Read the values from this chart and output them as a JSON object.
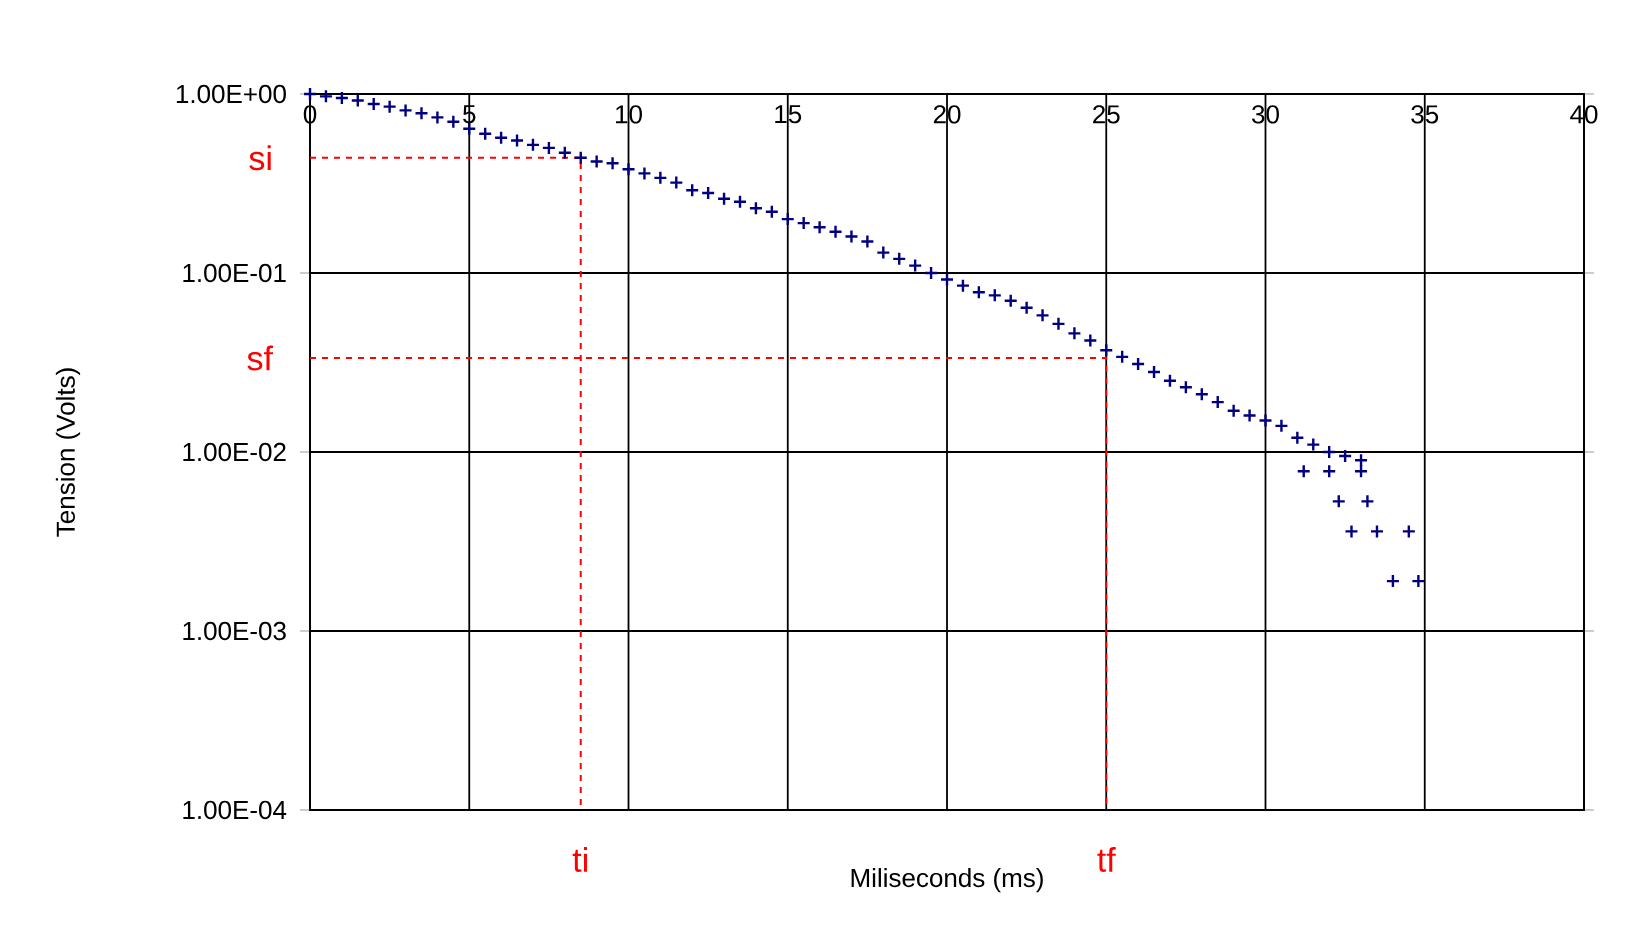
{
  "chart_data": {
    "type": "scatter",
    "xlabel": "Miliseconds (ms)",
    "ylabel": "Tension (Volts)",
    "log": "y",
    "grid": true,
    "xlim": [
      0,
      40
    ],
    "xticks": [
      0,
      5,
      10,
      15,
      20,
      25,
      30,
      35,
      40
    ],
    "ylim": [
      0.0001,
      1
    ],
    "yticks": [
      {
        "value": 1,
        "label": "1.00E+00"
      },
      {
        "value": 0.1,
        "label": "1.00E-01"
      },
      {
        "value": 0.01,
        "label": "1.00E-02"
      },
      {
        "value": 0.001,
        "label": "1.00E-03"
      },
      {
        "value": 0.0001,
        "label": "1.00E-04"
      }
    ],
    "series": [
      {
        "color": "#000080",
        "marker": "cross",
        "x": [
          0,
          0.5,
          1,
          1.5,
          2,
          2.5,
          3,
          3.5,
          4,
          4.5,
          5,
          5.5,
          6,
          6.5,
          7,
          7.5,
          8,
          8.5,
          9,
          9.5,
          10,
          10.5,
          11,
          11.5,
          12,
          12.5,
          13,
          13.5,
          14,
          14.5,
          15,
          15.5,
          16,
          16.5,
          17,
          17.5,
          18,
          18.5,
          19,
          19.5,
          20,
          20.5,
          21,
          21.5,
          22,
          22.5,
          23,
          23.5,
          24,
          24.5,
          25,
          25.5,
          26,
          26.5,
          27,
          27.5,
          28,
          28.5,
          29,
          29.5,
          30,
          30.5,
          31,
          31.5,
          32,
          32.5,
          33,
          31.2,
          32,
          33,
          32.3,
          33.2,
          32.7,
          33.5,
          34.5,
          34,
          34.8
        ],
        "values": [
          1.0,
          0.97,
          0.95,
          0.92,
          0.88,
          0.85,
          0.81,
          0.78,
          0.74,
          0.7,
          0.64,
          0.6,
          0.57,
          0.55,
          0.52,
          0.5,
          0.47,
          0.44,
          0.42,
          0.41,
          0.38,
          0.36,
          0.34,
          0.32,
          0.29,
          0.28,
          0.26,
          0.25,
          0.23,
          0.22,
          0.2,
          0.19,
          0.18,
          0.17,
          0.16,
          0.15,
          0.13,
          0.12,
          0.11,
          0.1,
          0.092,
          0.085,
          0.078,
          0.075,
          0.07,
          0.064,
          0.058,
          0.052,
          0.046,
          0.042,
          0.037,
          0.034,
          0.031,
          0.028,
          0.025,
          0.023,
          0.021,
          0.019,
          0.017,
          0.016,
          0.015,
          0.014,
          0.012,
          0.011,
          0.01,
          0.0095,
          0.009,
          0.0078,
          0.0078,
          0.0078,
          0.0053,
          0.0053,
          0.0036,
          0.0036,
          0.0036,
          0.0019,
          0.0019
        ]
      },
      {
        "type": "line",
        "color": "#ff0000",
        "line_style": "dashed",
        "x": [
          0,
          8.5,
          8.5
        ],
        "values": [
          0.44,
          0.44,
          0.0001
        ]
      },
      {
        "type": "line",
        "color": "#ff0000",
        "line_style": "dashed",
        "x": [
          0,
          25,
          25
        ],
        "values": [
          0.0335,
          0.0335,
          0.0001
        ]
      }
    ],
    "annotations": [
      {
        "text": "si",
        "x": 0,
        "y": 0.44
      },
      {
        "text": "ti",
        "x": 8.5,
        "y": 0.0001
      },
      {
        "text": "sf",
        "x": 0,
        "y": 0.0335
      },
      {
        "text": "tf",
        "x": 25,
        "y": 0.0001
      }
    ]
  }
}
